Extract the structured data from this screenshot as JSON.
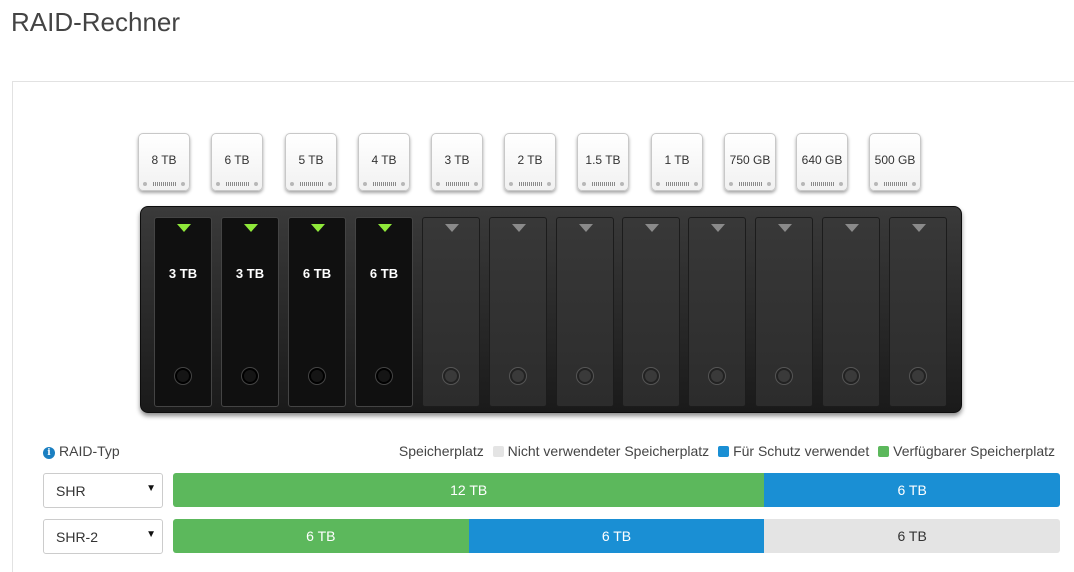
{
  "title": "RAID-Rechner",
  "colors": {
    "available": "#5cb85c",
    "protection": "#1a8fd4",
    "unused": "#e4e4e4"
  },
  "disk_options": [
    "8 TB",
    "6 TB",
    "5 TB",
    "4 TB",
    "3 TB",
    "2 TB",
    "1.5 TB",
    "1 TB",
    "750 GB",
    "640 GB",
    "500 GB"
  ],
  "nas": {
    "bays": [
      "3 TB",
      "3 TB",
      "6 TB",
      "6 TB",
      "",
      "",
      "",
      "",
      "",
      "",
      "",
      ""
    ]
  },
  "raid_type_label": "RAID-Typ",
  "info_icon": "info-icon",
  "legend": {
    "title": "Speicherplatz",
    "items": [
      {
        "label": "Nicht verwendeter Speicherplatz",
        "color": "#e4e4e4"
      },
      {
        "label": "Für Schutz verwendet",
        "color": "#1a8fd4"
      },
      {
        "label": "Verfügbarer Speicherplatz",
        "color": "#5cb85c"
      }
    ]
  },
  "rows": [
    {
      "raid_type": "SHR",
      "segments": [
        {
          "kind": "available",
          "label": "12 TB",
          "tb": 12
        },
        {
          "kind": "protection",
          "label": "6 TB",
          "tb": 6
        }
      ]
    },
    {
      "raid_type": "SHR-2",
      "segments": [
        {
          "kind": "available",
          "label": "6 TB",
          "tb": 6
        },
        {
          "kind": "protection",
          "label": "6 TB",
          "tb": 6
        },
        {
          "kind": "unused",
          "label": "6 TB",
          "tb": 6
        }
      ]
    }
  ]
}
